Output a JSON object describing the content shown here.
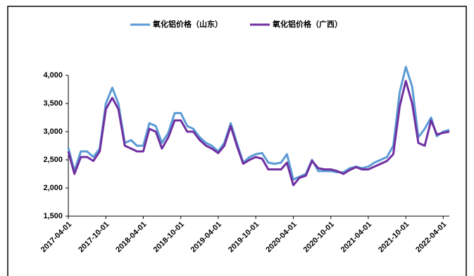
{
  "chart_data": {
    "type": "line",
    "x": [
      "2017-04-01",
      "2017-05-01",
      "2017-06-01",
      "2017-07-01",
      "2017-08-01",
      "2017-09-01",
      "2017-10-01",
      "2017-11-01",
      "2017-12-01",
      "2018-01-01",
      "2018-02-01",
      "2018-03-01",
      "2018-04-01",
      "2018-05-01",
      "2018-06-01",
      "2018-07-01",
      "2018-08-01",
      "2018-09-01",
      "2018-10-01",
      "2018-11-01",
      "2018-12-01",
      "2019-01-01",
      "2019-02-01",
      "2019-03-01",
      "2019-04-01",
      "2019-05-01",
      "2019-06-01",
      "2019-07-01",
      "2019-08-01",
      "2019-09-01",
      "2019-10-01",
      "2019-11-01",
      "2019-12-01",
      "2020-01-01",
      "2020-02-01",
      "2020-03-01",
      "2020-04-01",
      "2020-05-01",
      "2020-06-01",
      "2020-07-01",
      "2020-08-01",
      "2020-09-01",
      "2020-10-01",
      "2020-11-01",
      "2020-12-01",
      "2021-01-01",
      "2021-02-01",
      "2021-03-01",
      "2021-04-01",
      "2021-05-01",
      "2021-06-01",
      "2021-07-01",
      "2021-08-01",
      "2021-09-01",
      "2021-10-01",
      "2021-11-01",
      "2021-12-01",
      "2022-01-01",
      "2022-02-01",
      "2022-03-01",
      "2022-04-01",
      "2022-05-01"
    ],
    "series": [
      {
        "name": "氧化铝价格（山东）",
        "color": "#5b9bd5",
        "values": [
          2710,
          2300,
          2650,
          2650,
          2550,
          2700,
          3500,
          3780,
          3500,
          2800,
          2850,
          2750,
          2750,
          3150,
          3100,
          2800,
          2980,
          3330,
          3330,
          3100,
          3050,
          2900,
          2800,
          2750,
          2650,
          2800,
          3150,
          2800,
          2450,
          2550,
          2600,
          2620,
          2450,
          2430,
          2450,
          2600,
          2150,
          2200,
          2250,
          2500,
          2300,
          2300,
          2300,
          2280,
          2280,
          2350,
          2380,
          2350,
          2380,
          2450,
          2500,
          2550,
          2750,
          3700,
          4150,
          3800,
          2900,
          3050,
          3250,
          2920,
          3000,
          3030
        ]
      },
      {
        "name": "氧化铝价格（广西）",
        "color": "#7030a0",
        "values": [
          2650,
          2250,
          2550,
          2550,
          2480,
          2650,
          3400,
          3600,
          3400,
          2750,
          2700,
          2650,
          2650,
          3050,
          3000,
          2700,
          2900,
          3200,
          3200,
          3000,
          3000,
          2850,
          2750,
          2700,
          2620,
          2750,
          3100,
          2750,
          2430,
          2500,
          2550,
          2520,
          2330,
          2330,
          2330,
          2450,
          2050,
          2180,
          2220,
          2480,
          2350,
          2330,
          2330,
          2300,
          2250,
          2320,
          2370,
          2330,
          2330,
          2380,
          2430,
          2480,
          2600,
          3450,
          3900,
          3500,
          2800,
          2750,
          3200,
          2950,
          2980,
          3000
        ]
      }
    ],
    "xlim": [
      "2017-04-01",
      "2022-05-01"
    ],
    "xticks": [
      "2017-04-01",
      "2017-10-01",
      "2018-04-01",
      "2018-10-01",
      "2019-04-01",
      "2019-10-01",
      "2020-04-01",
      "2020-10-01",
      "2021-04-01",
      "2021-10-01",
      "2022-04-01"
    ],
    "ylim": [
      1500,
      4500
    ],
    "yticks": [
      {
        "value": 1500,
        "label": "1,500"
      },
      {
        "value": 2000,
        "label": "2,000"
      },
      {
        "value": 2500,
        "label": "2,500"
      },
      {
        "value": 3000,
        "label": "3,000"
      },
      {
        "value": 3500,
        "label": "3,500"
      },
      {
        "value": 4000,
        "label": "4,000"
      }
    ],
    "legend": "top"
  }
}
